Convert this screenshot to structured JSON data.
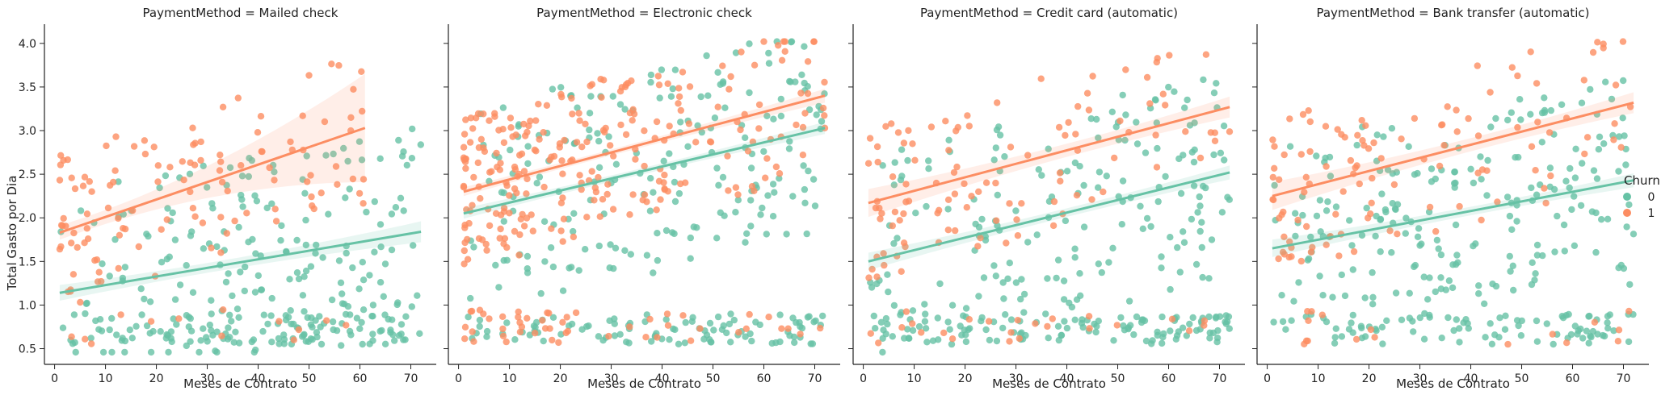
{
  "chart_data": {
    "type": "scatter",
    "kind": "faceted scatter with linear regression fits and confidence bands",
    "x_label": "Meses de Contrato",
    "y_label": "Total Gasto por Dia",
    "x_ticks": [
      0,
      10,
      20,
      30,
      40,
      50,
      60,
      70
    ],
    "y_ticks": [
      "0.5",
      "1.0",
      "1.5",
      "2.0",
      "2.5",
      "3.0",
      "3.5",
      "4.0"
    ],
    "xlim": [
      -2,
      75
    ],
    "ylim": [
      0.32,
      4.22
    ],
    "grid": false,
    "sharey": true,
    "legend": {
      "title": "Churn",
      "placement": "right",
      "entries": [
        {
          "label": "0",
          "color": "#66c2a5"
        },
        {
          "label": "1",
          "color": "#fc8d62"
        }
      ]
    },
    "facets": [
      {
        "title": "PaymentMethod = Mailed check",
        "series": [
          {
            "name": "0",
            "color": "#66c2a5",
            "x_range": [
              1,
              72
            ],
            "fit": [
              [
                1,
                1.14
              ],
              [
                72,
                1.84
              ]
            ],
            "band_halfwidth": [
              0.09,
              0.12
            ]
          },
          {
            "name": "1",
            "color": "#fc8d62",
            "x_range": [
              1,
              61
            ],
            "fit": [
              [
                1,
                1.83
              ],
              [
                61,
                3.03
              ]
            ],
            "band_halfwidth": [
              0.08,
              0.62
            ]
          }
        ]
      },
      {
        "title": "PaymentMethod = Electronic check",
        "series": [
          {
            "name": "0",
            "color": "#66c2a5",
            "x_range": [
              1,
              72
            ],
            "fit": [
              [
                1,
                2.05
              ],
              [
                72,
                3.03
              ]
            ],
            "band_halfwidth": [
              0.06,
              0.07
            ]
          },
          {
            "name": "1",
            "color": "#fc8d62",
            "x_range": [
              1,
              72
            ],
            "fit": [
              [
                1,
                2.3
              ],
              [
                72,
                3.4
              ]
            ],
            "band_halfwidth": [
              0.05,
              0.08
            ]
          }
        ]
      },
      {
        "title": "PaymentMethod = Credit card (automatic)",
        "series": [
          {
            "name": "0",
            "color": "#66c2a5",
            "x_range": [
              1,
              72
            ],
            "fit": [
              [
                1,
                1.5
              ],
              [
                72,
                2.52
              ]
            ],
            "band_halfwidth": [
              0.1,
              0.08
            ]
          },
          {
            "name": "1",
            "color": "#fc8d62",
            "x_range": [
              1,
              72
            ],
            "fit": [
              [
                1,
                2.17
              ],
              [
                72,
                3.27
              ]
            ],
            "band_halfwidth": [
              0.16,
              0.12
            ]
          }
        ]
      },
      {
        "title": "PaymentMethod = Bank transfer (automatic)",
        "series": [
          {
            "name": "0",
            "color": "#66c2a5",
            "x_range": [
              1,
              72
            ],
            "fit": [
              [
                1,
                1.65
              ],
              [
                72,
                2.43
              ]
            ],
            "band_halfwidth": [
              0.1,
              0.08
            ]
          },
          {
            "name": "1",
            "color": "#fc8d62",
            "x_range": [
              1,
              72
            ],
            "fit": [
              [
                1,
                2.25
              ],
              [
                72,
                3.32
              ]
            ],
            "band_halfwidth": [
              0.16,
              0.12
            ]
          }
        ]
      }
    ]
  }
}
